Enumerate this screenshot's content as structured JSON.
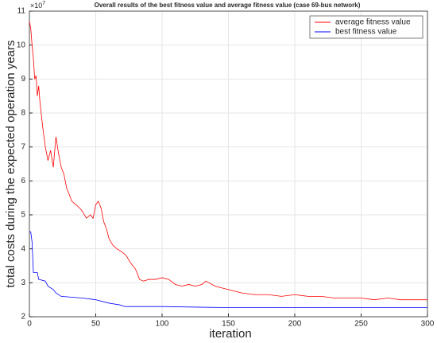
{
  "chart_data": {
    "type": "line",
    "title": "Overall results of the best fitness value and average fitness value (case 69-bus network)",
    "xlabel": "iteration",
    "ylabel": "total costs during the expected operation years",
    "y_multiplier": {
      "base": "×10",
      "power": "7"
    },
    "xlim": [
      0,
      300
    ],
    "xticks": [
      0,
      50,
      100,
      150,
      200,
      250,
      300
    ],
    "ylim": [
      2,
      11
    ],
    "yticks": [
      2,
      3,
      4,
      5,
      6,
      7,
      8,
      9,
      10,
      11
    ],
    "grid": true,
    "legend": "top-right",
    "series": [
      {
        "name": "average fitness value",
        "color": "#ff0000",
        "x": [
          0,
          1,
          2,
          3,
          4,
          5,
          6,
          7,
          8,
          10,
          12,
          14,
          16,
          18,
          20,
          22,
          24,
          26,
          28,
          30,
          32,
          35,
          38,
          40,
          43,
          46,
          48,
          50,
          52,
          54,
          56,
          58,
          60,
          63,
          66,
          70,
          73,
          76,
          80,
          83,
          86,
          90,
          95,
          100,
          105,
          110,
          115,
          120,
          125,
          130,
          133,
          140,
          150,
          160,
          170,
          180,
          190,
          200,
          210,
          220,
          230,
          240,
          250,
          260,
          270,
          280,
          290,
          300
        ],
        "values": [
          10.7,
          10.5,
          10.0,
          9.6,
          9.0,
          9.1,
          8.5,
          8.8,
          8.3,
          7.6,
          7.0,
          6.6,
          6.9,
          6.4,
          7.3,
          6.8,
          6.4,
          6.2,
          5.8,
          5.6,
          5.4,
          5.3,
          5.2,
          5.1,
          4.9,
          5.0,
          4.9,
          5.3,
          5.4,
          5.2,
          4.8,
          4.6,
          4.3,
          4.1,
          4.0,
          3.9,
          3.8,
          3.6,
          3.4,
          3.1,
          3.05,
          3.1,
          3.1,
          3.15,
          3.1,
          2.95,
          2.9,
          2.95,
          2.9,
          2.95,
          3.05,
          2.9,
          2.8,
          2.7,
          2.65,
          2.65,
          2.6,
          2.65,
          2.6,
          2.6,
          2.55,
          2.55,
          2.55,
          2.5,
          2.55,
          2.5,
          2.5,
          2.5
        ]
      },
      {
        "name": "best fitness value",
        "color": "#0000ff",
        "x": [
          0,
          1,
          2,
          3,
          6,
          7,
          12,
          14,
          18,
          20,
          24,
          40,
          50,
          60,
          68,
          72,
          100,
          130,
          150,
          300
        ],
        "values": [
          4.5,
          4.5,
          4.2,
          3.3,
          3.3,
          3.1,
          3.05,
          2.9,
          2.8,
          2.7,
          2.6,
          2.55,
          2.5,
          2.4,
          2.35,
          2.3,
          2.3,
          2.28,
          2.27,
          2.27
        ]
      }
    ]
  }
}
